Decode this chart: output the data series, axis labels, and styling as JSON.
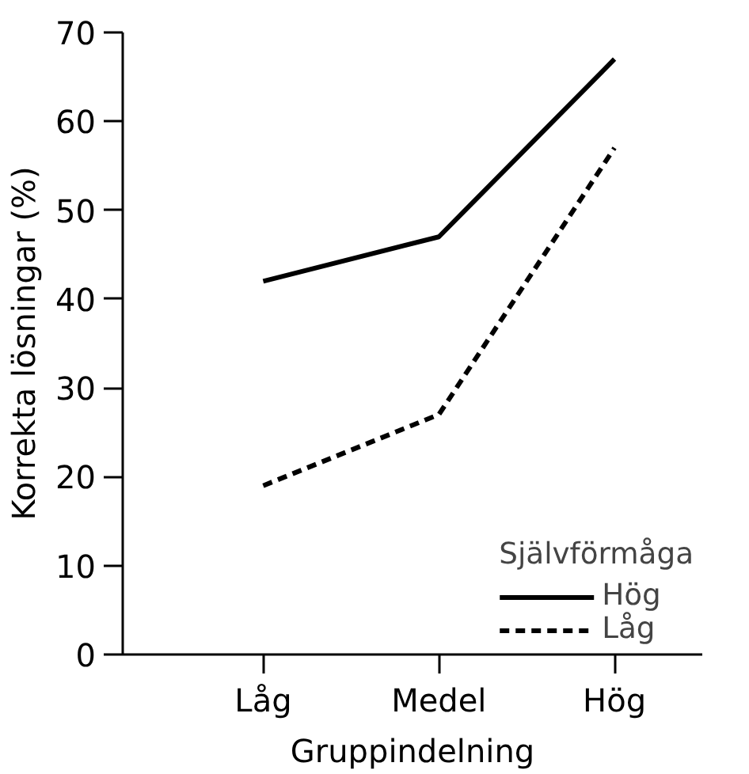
{
  "chart_data": {
    "type": "line",
    "xlabel": "Gruppindelning",
    "ylabel": "Korrekta lösningar (%)",
    "legend_title": "Självförmåga",
    "categories": [
      "Låg",
      "Medel",
      "Hög"
    ],
    "series": [
      {
        "name": "Hög",
        "color": "#000000",
        "line_style": "solid",
        "values": [
          42,
          47,
          67
        ]
      },
      {
        "name": "Låg",
        "color": "#000000",
        "line_style": "dashed",
        "values": [
          19,
          27,
          57
        ]
      }
    ],
    "ylim": [
      0,
      70
    ],
    "yticks": [
      0,
      10,
      20,
      30,
      40,
      50,
      60,
      70
    ],
    "grid": false,
    "legend": "bottom right",
    "marker": "none"
  }
}
